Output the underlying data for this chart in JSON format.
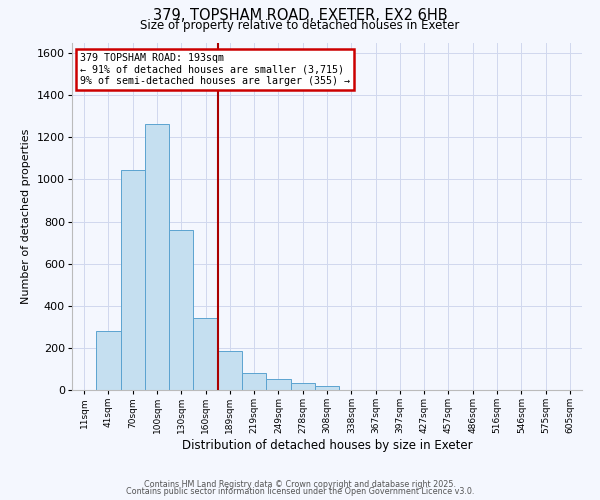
{
  "title1": "379, TOPSHAM ROAD, EXETER, EX2 6HB",
  "title2": "Size of property relative to detached houses in Exeter",
  "xlabel": "Distribution of detached houses by size in Exeter",
  "ylabel": "Number of detached properties",
  "bin_labels": [
    "11sqm",
    "41sqm",
    "70sqm",
    "100sqm",
    "130sqm",
    "160sqm",
    "189sqm",
    "219sqm",
    "249sqm",
    "278sqm",
    "308sqm",
    "338sqm",
    "367sqm",
    "397sqm",
    "427sqm",
    "457sqm",
    "486sqm",
    "516sqm",
    "546sqm",
    "575sqm",
    "605sqm"
  ],
  "bar_heights": [
    0,
    280,
    1045,
    1265,
    760,
    340,
    185,
    80,
    50,
    35,
    20,
    0,
    0,
    0,
    0,
    0,
    0,
    0,
    0,
    0,
    0
  ],
  "bar_color": "#c5dff0",
  "bar_edge_color": "#5ba3d0",
  "vline_x_index": 6,
  "vline_color": "#aa0000",
  "annotation_text": "379 TOPSHAM ROAD: 193sqm\n← 91% of detached houses are smaller (3,715)\n9% of semi-detached houses are larger (355) →",
  "annotation_box_edge_color": "#cc0000",
  "ylim": [
    0,
    1650
  ],
  "yticks": [
    0,
    200,
    400,
    600,
    800,
    1000,
    1200,
    1400,
    1600
  ],
  "footer1": "Contains HM Land Registry data © Crown copyright and database right 2025.",
  "footer2": "Contains public sector information licensed under the Open Government Licence v3.0.",
  "background_color": "#f4f7fe",
  "grid_color": "#d0d8ee",
  "fig_width": 6.0,
  "fig_height": 5.0,
  "dpi": 100
}
